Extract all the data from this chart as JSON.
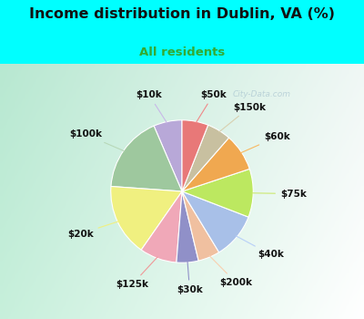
{
  "title": "Income distribution in Dublin, VA (%)",
  "subtitle": "All residents",
  "title_color": "#111111",
  "subtitle_color": "#33aa33",
  "bg_color": "#00FFFF",
  "chart_bg_gradient_left": "#b8e8d8",
  "chart_bg_gradient_right": "#e8f8f0",
  "watermark": "City-Data.com",
  "labels": [
    "$10k",
    "$100k",
    "$20k",
    "$125k",
    "$30k",
    "$200k",
    "$40k",
    "$75k",
    "$60k",
    "$150k",
    "$50k"
  ],
  "values": [
    6.5,
    17.5,
    16.5,
    8.5,
    5.0,
    5.0,
    10.5,
    11.0,
    8.5,
    5.5,
    6.0
  ],
  "colors": [
    "#b8a8d8",
    "#9ec89e",
    "#f0f080",
    "#f0a8b8",
    "#9090c8",
    "#f0c0a0",
    "#a8c0e8",
    "#bce860",
    "#f0a850",
    "#c8c0a0",
    "#e87878"
  ],
  "line_colors": [
    "#c8b8e8",
    "#b8d8b8",
    "#f0f080",
    "#f09898",
    "#9090c8",
    "#f8d0b0",
    "#b8d0f8",
    "#cce870",
    "#f8b860",
    "#d8d0b0",
    "#f08888"
  ],
  "startangle": 90
}
